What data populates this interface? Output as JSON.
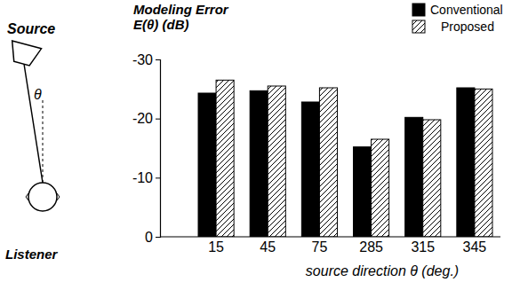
{
  "chart_data": {
    "type": "bar",
    "ylabel": [
      "Modeling Error",
      "E(θ) (dB)"
    ],
    "xlabel": "source direction θ (deg.)",
    "annotations": [
      "Source",
      "θ",
      "Listener"
    ],
    "categories": [
      "15",
      "45",
      "75",
      "285",
      "315",
      "345"
    ],
    "series": [
      {
        "name": "Conventional",
        "color": "#000000",
        "values": [
          -24.3,
          -24.7,
          -22.8,
          -15.2,
          -20.2,
          -25.2
        ]
      },
      {
        "name": "Proposed",
        "color": "#ffffff",
        "values": [
          -26.5,
          -25.5,
          -25.2,
          -16.5,
          -19.8,
          -25.0
        ]
      }
    ],
    "ylim": [
      0,
      -30
    ],
    "yticks": [
      -30,
      -20,
      -10,
      0
    ],
    "legend": "top-right",
    "grid": false
  }
}
